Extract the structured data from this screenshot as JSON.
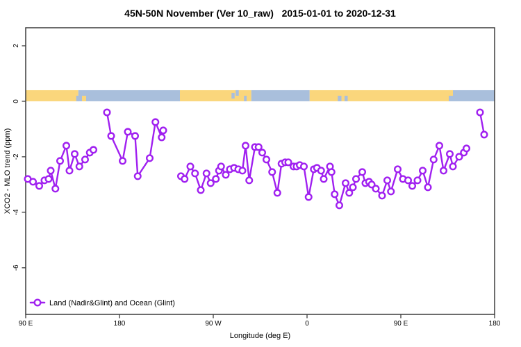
{
  "figure": {
    "background": "#ffffff"
  },
  "chart_data": {
    "type": "line",
    "title": "45N-50N November (Ver 10_raw)   2015-01-01 to 2020-12-31",
    "xlabel": "Longitude (deg E)",
    "ylabel": "XCO2 - MLO trend (ppm)",
    "xlim": [
      90,
      540
    ],
    "ylim": [
      -7.68,
      2.65
    ],
    "grid": false,
    "legend_position": "bottom-left-inside",
    "x_ticks": [
      {
        "value": 90,
        "label": "90 E"
      },
      {
        "value": 180,
        "label": "180"
      },
      {
        "value": 270,
        "label": "90 W"
      },
      {
        "value": 360,
        "label": "0"
      },
      {
        "value": 450,
        "label": "90 E"
      },
      {
        "value": 540,
        "label": "180"
      }
    ],
    "y_ticks": [
      {
        "value": 2,
        "label": "2"
      },
      {
        "value": 0,
        "label": "0"
      },
      {
        "value": -2,
        "label": "-2"
      },
      {
        "value": -4,
        "label": "-4"
      },
      {
        "value": -6,
        "label": "-6"
      }
    ],
    "colors": {
      "series": "#A020F0",
      "land": "#FAD67C",
      "ocean": "#A9BFDC",
      "frame": "#3C3C3C",
      "marker_fill": "#FFFFFF"
    },
    "map_band": {
      "description": "land/ocean strip along 45N-50N drawn between y=0 and y=0.4",
      "value_range": [
        0,
        0.4
      ],
      "segments": [
        {
          "from": 90,
          "to": 140.5,
          "type": "land",
          "part": "full"
        },
        {
          "from": 140.5,
          "to": 238,
          "type": "ocean",
          "part": "full"
        },
        {
          "from": 238,
          "to": 306.5,
          "type": "land",
          "part": "full"
        },
        {
          "from": 306.5,
          "to": 362.5,
          "type": "ocean",
          "part": "full"
        },
        {
          "from": 362.5,
          "to": 496,
          "type": "land",
          "part": "full"
        },
        {
          "from": 496,
          "to": 540,
          "type": "ocean",
          "part": "full"
        }
      ],
      "details": [
        {
          "from": 138.5,
          "to": 141.5,
          "type": "ocean",
          "part": "lower"
        },
        {
          "from": 144,
          "to": 148,
          "type": "land",
          "part": "lower"
        },
        {
          "from": 287.5,
          "to": 290.5,
          "type": "ocean",
          "part": "middle"
        },
        {
          "from": 291.5,
          "to": 294.5,
          "type": "ocean",
          "part": "upper"
        },
        {
          "from": 299.5,
          "to": 302,
          "type": "ocean",
          "part": "lower"
        },
        {
          "from": 389.5,
          "to": 393,
          "type": "ocean",
          "part": "lower"
        },
        {
          "from": 396,
          "to": 399,
          "type": "ocean",
          "part": "lower"
        },
        {
          "from": 496,
          "to": 500,
          "type": "land",
          "part": "upper"
        }
      ]
    },
    "series": [
      {
        "name": "Land (Nadir&Glint) and Ocean (Glint)",
        "marker": "open-circle",
        "segments": [
          [
            [
              92,
              -2.8
            ],
            [
              97,
              -2.9
            ],
            [
              103,
              -3.05
            ],
            [
              108,
              -2.85
            ],
            [
              112,
              -2.8
            ],
            [
              114,
              -2.5
            ],
            [
              118.5,
              -3.15
            ],
            [
              123,
              -2.15
            ],
            [
              129,
              -1.6
            ],
            [
              132,
              -2.5
            ],
            [
              137,
              -1.9
            ],
            [
              141.5,
              -2.35
            ],
            [
              147,
              -2.1
            ],
            [
              151.5,
              -1.85
            ],
            [
              155,
              -1.75
            ]
          ],
          [
            [
              168,
              -0.4
            ],
            [
              172,
              -1.25
            ],
            [
              183,
              -2.15
            ],
            [
              188,
              -1.1
            ],
            [
              195,
              -1.25
            ],
            [
              197.5,
              -2.7
            ],
            [
              209,
              -2.05
            ],
            [
              214.5,
              -0.75
            ],
            [
              220.5,
              -1.3
            ],
            [
              222,
              -1.05
            ]
          ],
          [
            [
              239,
              -2.7
            ],
            [
              242.5,
              -2.8
            ],
            [
              248,
              -2.35
            ],
            [
              252.5,
              -2.6
            ],
            [
              258,
              -3.2
            ],
            [
              263.5,
              -2.6
            ],
            [
              267.5,
              -2.95
            ],
            [
              272.5,
              -2.8
            ],
            [
              275.5,
              -2.5
            ],
            [
              277.5,
              -2.35
            ],
            [
              282,
              -2.65
            ],
            [
              286,
              -2.45
            ],
            [
              290,
              -2.4
            ],
            [
              294,
              -2.45
            ],
            [
              298,
              -2.5
            ],
            [
              301,
              -1.6
            ],
            [
              304.5,
              -2.85
            ],
            [
              310,
              -1.65
            ],
            [
              313.5,
              -1.65
            ],
            [
              317,
              -1.85
            ],
            [
              321,
              -2.1
            ],
            [
              326.5,
              -2.55
            ],
            [
              331.5,
              -3.3
            ],
            [
              335.5,
              -2.25
            ],
            [
              339,
              -2.2
            ],
            [
              342,
              -2.2
            ],
            [
              347,
              -2.35
            ],
            [
              350,
              -2.35
            ],
            [
              353,
              -2.3
            ],
            [
              357,
              -2.35
            ],
            [
              361.5,
              -3.45
            ],
            [
              366.5,
              -2.45
            ],
            [
              369.5,
              -2.4
            ],
            [
              373.5,
              -2.5
            ],
            [
              376,
              -2.8
            ],
            [
              382,
              -2.35
            ],
            [
              383.5,
              -2.55
            ],
            [
              386.5,
              -3.35
            ],
            [
              391,
              -3.75
            ],
            [
              397,
              -2.95
            ],
            [
              400.5,
              -3.3
            ],
            [
              404,
              -3.1
            ],
            [
              407,
              -2.8
            ],
            [
              413,
              -2.55
            ],
            [
              416,
              -2.95
            ],
            [
              419.5,
              -2.9
            ],
            [
              422,
              -3.0
            ],
            [
              426,
              -3.15
            ],
            [
              432,
              -3.4
            ],
            [
              437,
              -2.85
            ],
            [
              440.5,
              -3.25
            ],
            [
              447,
              -2.45
            ],
            [
              452,
              -2.8
            ],
            [
              457,
              -2.85
            ],
            [
              461,
              -3.05
            ],
            [
              466,
              -2.85
            ],
            [
              471,
              -2.5
            ],
            [
              476,
              -3.1
            ],
            [
              481.5,
              -2.1
            ],
            [
              487,
              -1.6
            ],
            [
              491,
              -2.5
            ],
            [
              497,
              -1.9
            ],
            [
              500,
              -2.35
            ],
            [
              506,
              -2.0
            ],
            [
              510.5,
              -1.85
            ],
            [
              513,
              -1.7
            ]
          ],
          [
            [
              526,
              -0.4
            ],
            [
              530,
              -1.2
            ]
          ]
        ]
      }
    ]
  }
}
